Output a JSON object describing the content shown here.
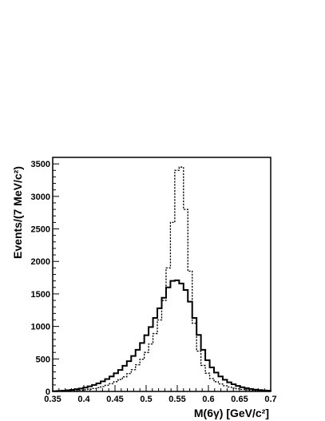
{
  "chart_data": {
    "type": "histogram",
    "title": "",
    "xlabel": "M(6γ) [GeV/c²]",
    "ylabel": "Events/(7 MeV/c²)",
    "xlim": [
      0.35,
      0.7
    ],
    "ylim": [
      0,
      3600
    ],
    "xticks": [
      "0.35",
      "0.4",
      "0.45",
      "0.5",
      "0.55",
      "0.6",
      "0.65",
      "0.7"
    ],
    "yticks": [
      "0",
      "500",
      "1000",
      "1500",
      "2000",
      "2500",
      "3000",
      "3500"
    ],
    "grid": false,
    "legend": "none",
    "bin_edges": [
      0.35,
      0.357,
      0.364,
      0.371,
      0.378,
      0.385,
      0.392,
      0.399,
      0.406,
      0.413,
      0.42,
      0.427,
      0.434,
      0.441,
      0.448,
      0.455,
      0.462,
      0.469,
      0.476,
      0.483,
      0.49,
      0.497,
      0.504,
      0.511,
      0.518,
      0.525,
      0.532,
      0.539,
      0.546,
      0.553,
      0.56,
      0.567,
      0.574,
      0.581,
      0.588,
      0.595,
      0.602,
      0.609,
      0.616,
      0.623,
      0.63,
      0.637,
      0.644,
      0.651,
      0.658,
      0.665,
      0.672,
      0.679,
      0.686,
      0.693,
      0.7
    ],
    "series": [
      {
        "style": "solid",
        "values": [
          5,
          8,
          12,
          18,
          25,
          35,
          45,
          60,
          78,
          100,
          125,
          155,
          190,
          230,
          280,
          330,
          395,
          465,
          545,
          640,
          745,
          865,
          990,
          1130,
          1280,
          1440,
          1600,
          1700,
          1710,
          1660,
          1560,
          1380,
          1130,
          870,
          640,
          480,
          370,
          290,
          230,
          180,
          140,
          110,
          85,
          65,
          50,
          38,
          28,
          22,
          16,
          12
        ]
      },
      {
        "style": "dotted",
        "values": [
          2,
          3,
          5,
          7,
          10,
          14,
          19,
          26,
          34,
          45,
          58,
          75,
          95,
          120,
          150,
          185,
          225,
          275,
          335,
          410,
          495,
          600,
          730,
          890,
          1100,
          1400,
          1900,
          2600,
          3400,
          3450,
          2800,
          1850,
          1050,
          620,
          400,
          280,
          200,
          150,
          115,
          88,
          68,
          52,
          40,
          31,
          24,
          18,
          14,
          10,
          8,
          6
        ]
      }
    ]
  }
}
